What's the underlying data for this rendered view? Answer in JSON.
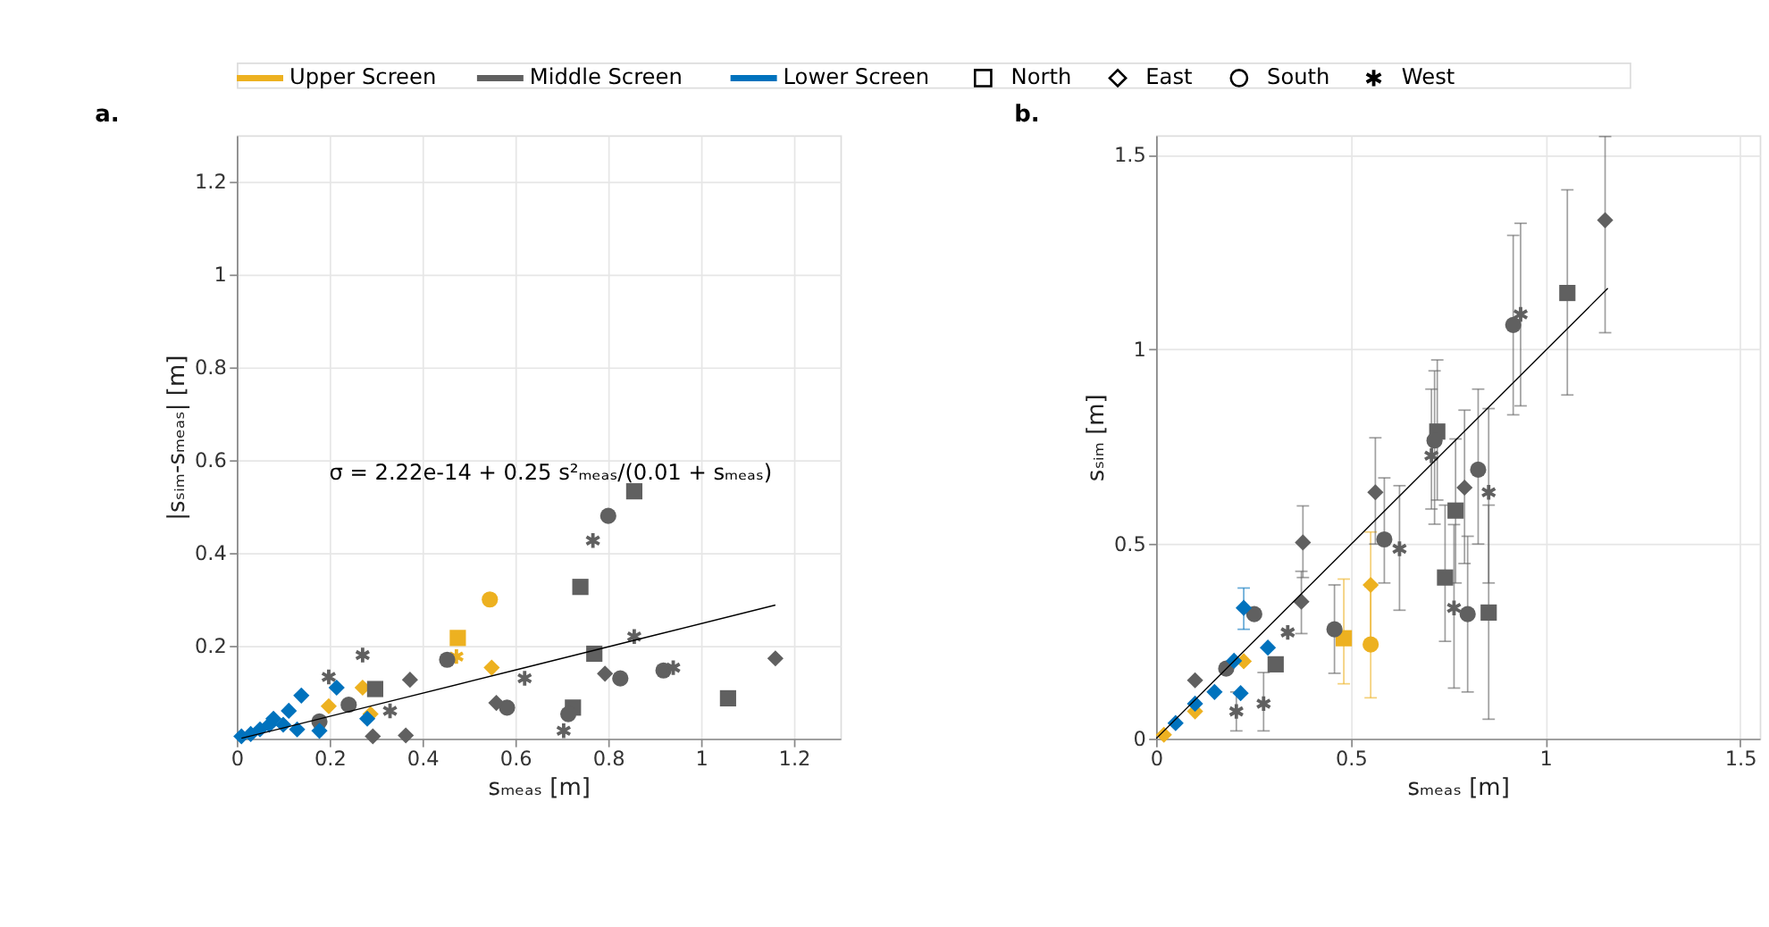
{
  "chart_data": [
    {
      "type": "scatter",
      "title": "a.",
      "xlabel": "sₘₑₐₛ [m]",
      "ylabel": "|sₛᵢₘ-sₘₑₐₛ| [m]",
      "xlim": [
        0,
        1.3
      ],
      "ylim": [
        0,
        1.3
      ],
      "xticks": [
        0,
        0.2,
        0.4,
        0.6,
        0.8,
        1,
        1.2
      ],
      "yticks": [
        0.2,
        0.4,
        0.6,
        0.8,
        1,
        1.2
      ],
      "grid": true,
      "legend": "top",
      "annotations": [
        "σ = 2.22e-14 + 0.25 s²ₘₑₐₛ/(0.01 + sₘₑₐₛ)"
      ],
      "series": [
        {
          "name": "Upper Screen",
          "color": "#edb120",
          "marker": "circle",
          "x": [
            0.545
          ],
          "values": [
            0.3
          ]
        },
        {
          "color": "#edb120",
          "marker": "square",
          "x": [
            0.476
          ],
          "values": [
            0.217
          ]
        },
        {
          "color": "#edb120",
          "marker": "cross",
          "x": [
            0.473
          ],
          "values": [
            0.177
          ]
        },
        {
          "color": "#edb120",
          "marker": "diamond",
          "x": [
            0.549,
            0.271,
            0.198,
            0.288
          ],
          "values": [
            0.153,
            0.11,
            0.07,
            0.053
          ]
        },
        {
          "name": "Middle Screen",
          "color": "#606060",
          "marker": "square",
          "x": [
            0.856,
            0.74,
            0.77,
            1.058,
            0.724,
            0.298
          ],
          "values": [
            0.533,
            0.327,
            0.183,
            0.087,
            0.067,
            0.107
          ]
        },
        {
          "color": "#606060",
          "marker": "circle",
          "x": [
            0.8,
            0.826,
            0.919,
            0.582,
            0.714,
            0.453,
            0.241,
            0.178
          ],
          "values": [
            0.48,
            0.13,
            0.147,
            0.067,
            0.053,
            0.17,
            0.073,
            0.037
          ]
        },
        {
          "color": "#606060",
          "marker": "cross",
          "x": [
            0.767,
            0.856,
            0.94,
            0.62,
            0.704,
            0.271,
            0.198,
            0.33
          ],
          "values": [
            0.427,
            0.22,
            0.153,
            0.13,
            0.017,
            0.18,
            0.133,
            0.06
          ]
        },
        {
          "color": "#606060",
          "marker": "diamond",
          "x": [
            0.793,
            1.16,
            0.559,
            0.373,
            0.364,
            0.293
          ],
          "values": [
            0.14,
            0.173,
            0.077,
            0.127,
            0.007,
            0.005
          ]
        },
        {
          "name": "Lower Screen",
          "color": "#0072bd",
          "marker": "diamond",
          "x": [
            0.215,
            0.139,
            0.281,
            0.112,
            0.079,
            0.178,
            0.01,
            0.03,
            0.05,
            0.07,
            0.1,
            0.13
          ],
          "values": [
            0.11,
            0.093,
            0.043,
            0.06,
            0.043,
            0.017,
            0.005,
            0.01,
            0.02,
            0.03,
            0.03,
            0.02
          ]
        },
        {
          "name": "North",
          "color": "#000000",
          "marker": "square"
        },
        {
          "name": "East",
          "color": "#000000",
          "marker": "diamond"
        },
        {
          "name": "South",
          "color": "#000000",
          "marker": "circle"
        },
        {
          "name": "West",
          "color": "#000000",
          "marker": "cross"
        },
        {
          "type": "line",
          "color": "#000000",
          "x": [
            0.01,
            0.1,
            0.3,
            0.6,
            0.9,
            1.16
          ],
          "values": [
            0.001,
            0.023,
            0.073,
            0.148,
            0.223,
            0.288
          ]
        }
      ]
    },
    {
      "type": "scatter",
      "title": "b.",
      "xlabel": "sₘₑₐₛ [m]",
      "ylabel": "sₛᵢₘ [m]",
      "xlim": [
        0,
        1.55
      ],
      "ylim": [
        0,
        1.55
      ],
      "xticks": [
        0,
        0.5,
        1,
        1.5
      ],
      "yticks": [
        0,
        0.5,
        1,
        1.5
      ],
      "grid": true,
      "series": [
        {
          "color": "#edb120",
          "marker": "diamond",
          "x": [
            0.551,
            0.225,
            0.1,
            0.02
          ],
          "values": [
            0.395,
            0.199,
            0.07,
            0.01
          ],
          "errors": [
            [
              0.25,
              0.531
            ],
            null,
            null,
            null
          ]
        },
        {
          "color": "#edb120",
          "marker": "circle",
          "x": [
            0.551
          ],
          "values": [
            0.242
          ],
          "errors": [
            [
              0.105,
              0.39
            ]
          ]
        },
        {
          "color": "#edb120",
          "marker": "square",
          "x": [
            0.482
          ],
          "values": [
            0.258
          ],
          "errors": [
            [
              0.141,
              0.41
            ]
          ]
        },
        {
          "color": "#606060",
          "marker": "diamond",
          "x": [
            1.153,
            0.563,
            0.792,
            0.377,
            0.373,
            0.1
          ],
          "values": [
            1.332,
            0.633,
            0.645,
            0.504,
            0.352,
            0.15
          ],
          "errors": [
            [
              1.043,
              1.547
            ],
            [
              0.5,
              0.773
            ],
            [
              0.45,
              0.844
            ],
            [
              0.414,
              0.598
            ],
            [
              0.27,
              0.43
            ],
            null
          ]
        },
        {
          "color": "#606060",
          "marker": "square",
          "x": [
            1.056,
            0.722,
            0.769,
            0.742,
            0.854,
            0.307
          ],
          "values": [
            1.145,
            0.789,
            0.586,
            0.414,
            0.324,
            0.191
          ],
          "errors": [
            [
              0.883,
              1.41
            ],
            [
              0.613,
              0.973
            ],
            [
              0.4,
              0.77
            ],
            [
              0.25,
              0.6
            ],
            [
              0.05,
              0.6
            ],
            null
          ]
        },
        {
          "color": "#606060",
          "marker": "circle",
          "x": [
            0.917,
            0.715,
            0.827,
            0.586,
            0.8,
            0.458,
            0.252,
            0.18
          ],
          "values": [
            1.063,
            0.766,
            0.691,
            0.512,
            0.32,
            0.281,
            0.32,
            0.18
          ],
          "errors": [
            [
              0.832,
              1.293
            ],
            [
              0.551,
              0.945
            ],
            [
              0.5,
              0.898
            ],
            [
              0.4,
              0.67
            ],
            [
              0.12,
              0.52
            ],
            [
              0.168,
              0.395
            ],
            null,
            null
          ]
        },
        {
          "color": "#606060",
          "marker": "cross",
          "x": [
            0.936,
            0.707,
            0.854,
            0.625,
            0.765,
            0.338,
            0.276,
            0.206
          ],
          "values": [
            1.09,
            0.727,
            0.633,
            0.488,
            0.336,
            0.273,
            0.09,
            0.07
          ],
          "errors": [
            [
              0.855,
              1.324
            ],
            [
              0.59,
              0.898
            ],
            [
              0.4,
              0.848
            ],
            [
              0.33,
              0.65
            ],
            [
              0.13,
              0.55
            ],
            null,
            [
              0.02,
              0.17
            ],
            [
              0.02,
              0.12
            ]
          ]
        },
        {
          "color": "#0072bd",
          "marker": "diamond",
          "x": [
            0.225,
            0.287,
            0.217,
            0.05,
            0.1,
            0.15,
            0.2
          ],
          "values": [
            0.336,
            0.234,
            0.117,
            0.04,
            0.09,
            0.12,
            0.2
          ],
          "errors": [
            [
              0.281,
              0.387
            ],
            null,
            null,
            null,
            null,
            null,
            null
          ]
        },
        {
          "type": "line",
          "color": "#000000",
          "x": [
            0,
            1.16
          ],
          "values": [
            0,
            1.157
          ]
        }
      ]
    }
  ]
}
